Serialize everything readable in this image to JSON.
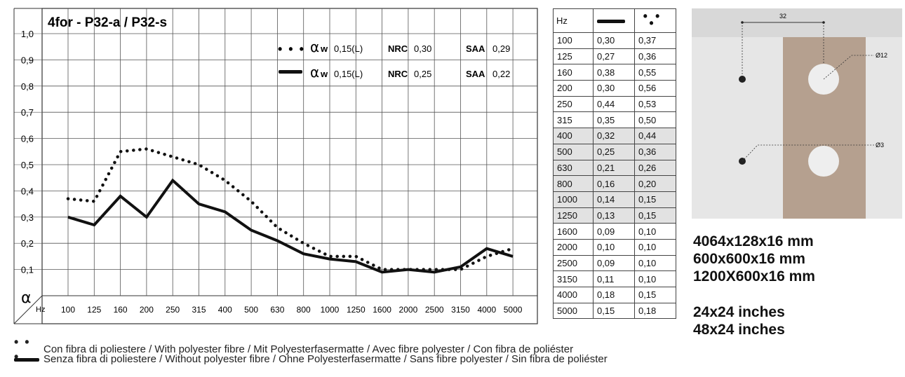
{
  "chart_data": {
    "type": "line",
    "title": "4for - P32-a / P32-s",
    "ylabel": "α",
    "xlabel": "Hz",
    "ylim": [
      0,
      1.0
    ],
    "yticks": [
      "1,0",
      "0,9",
      "0,8",
      "0,7",
      "0,6",
      "0,5",
      "0,4",
      "0,3",
      "0,2",
      "0,1"
    ],
    "categories": [
      "100",
      "125",
      "160",
      "200",
      "250",
      "315",
      "400",
      "500",
      "630",
      "800",
      "1000",
      "1250",
      "1600",
      "2000",
      "2500",
      "3150",
      "4000",
      "5000"
    ],
    "grid": true,
    "legend_position": "top-right",
    "series": [
      {
        "name": "Con fibra di poliestere / With polyester fibre / Mit Polyesterfasermatte / Avec fibre polyester / Con fibra de poliéster",
        "style": "dotted",
        "values": [
          0.37,
          0.36,
          0.55,
          0.56,
          0.53,
          0.5,
          0.44,
          0.36,
          0.26,
          0.2,
          0.15,
          0.15,
          0.1,
          0.1,
          0.1,
          0.1,
          0.15,
          0.18
        ]
      },
      {
        "name": "Senza fibra di poliestere / Without polyester fibre / Ohne Polyesterfasermatte / Sans fibre polyester / Sin fibra de poliéster",
        "style": "solid",
        "values": [
          0.3,
          0.27,
          0.38,
          0.3,
          0.44,
          0.35,
          0.32,
          0.25,
          0.21,
          0.16,
          0.14,
          0.13,
          0.09,
          0.1,
          0.09,
          0.11,
          0.18,
          0.15
        ]
      }
    ],
    "annotations": [
      {
        "alpha_symbol": "α",
        "alpha_sub": "w",
        "alpha_value": "0,15(L)",
        "nrc_label": "NRC",
        "nrc_value": "0,30",
        "saa_label": "SAA",
        "saa_value": "0,29"
      },
      {
        "alpha_symbol": "α",
        "alpha_sub": "w",
        "alpha_value": "0,15(L)",
        "nrc_label": "NRC",
        "nrc_value": "0,25",
        "saa_label": "SAA",
        "saa_value": "0,22"
      }
    ]
  },
  "table": {
    "header": "Hz",
    "rows": [
      [
        "100",
        "0,30",
        "0,37"
      ],
      [
        "125",
        "0,27",
        "0,36"
      ],
      [
        "160",
        "0,38",
        "0,55"
      ],
      [
        "200",
        "0,30",
        "0,56"
      ],
      [
        "250",
        "0,44",
        "0,53"
      ],
      [
        "315",
        "0,35",
        "0,50"
      ],
      [
        "400",
        "0,32",
        "0,44"
      ],
      [
        "500",
        "0,25",
        "0,36"
      ],
      [
        "630",
        "0,21",
        "0,26"
      ],
      [
        "800",
        "0,16",
        "0,20"
      ],
      [
        "1000",
        "0,14",
        "0,15"
      ],
      [
        "1250",
        "0,13",
        "0,15"
      ],
      [
        "1600",
        "0,09",
        "0,10"
      ],
      [
        "2000",
        "0,10",
        "0,10"
      ],
      [
        "2500",
        "0,09",
        "0,10"
      ],
      [
        "3150",
        "0,11",
        "0,10"
      ],
      [
        "4000",
        "0,18",
        "0,15"
      ],
      [
        "5000",
        "0,15",
        "0,18"
      ]
    ],
    "shaded_rows": [
      6,
      7,
      8,
      9,
      10,
      11
    ]
  },
  "diagram": {
    "dimension": "32",
    "hole_large": "Ø12",
    "hole_small": "Ø3",
    "colors": {
      "background": "#e6e6e6",
      "top_band": "#d8d8d8",
      "panel": "#b5a08f",
      "hole": "#eeeeee",
      "dot": "#222222"
    }
  },
  "dimensions": [
    "4064x128x16 mm",
    "600x600x16 mm",
    "1200X600x16 mm",
    "24x24 inches",
    "48x24 inches"
  ],
  "legend": [
    {
      "style": "dotted",
      "text": "Con fibra di poliestere / With polyester fibre / Mit Polyesterfasermatte / Avec fibre polyester / Con fibra de poliéster"
    },
    {
      "style": "solid",
      "text": "Senza fibra di poliestere / Without polyester fibre / Ohne Polyesterfasermatte / Sans fibre polyester / Sin fibra de poliéster"
    }
  ]
}
